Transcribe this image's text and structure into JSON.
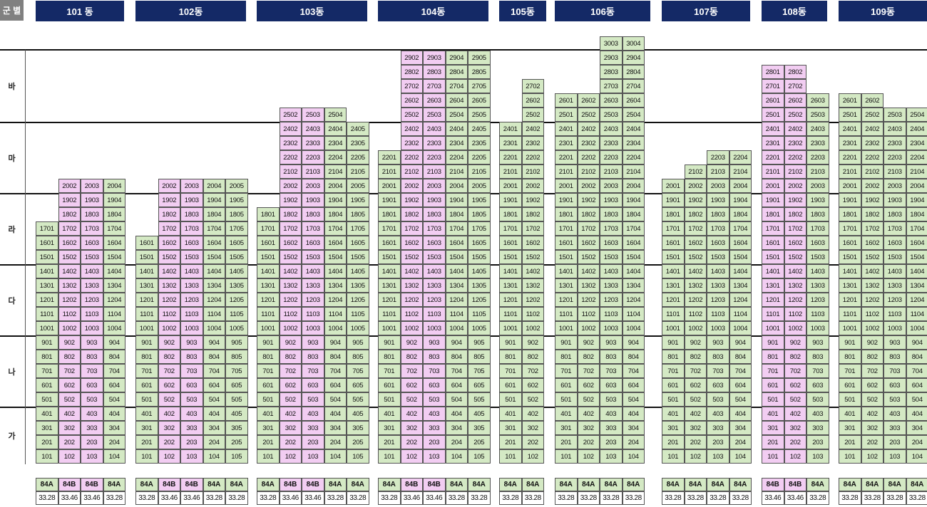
{
  "header": {
    "group_label": "군 별"
  },
  "groups": [
    "바",
    "마",
    "라",
    "다",
    "나",
    "가"
  ],
  "colors": {
    "type_84A": "#d4e9c4",
    "type_84B": "#f2cdf2",
    "header_bg": "#142966"
  },
  "buildings": [
    {
      "name": "101 동",
      "types": [
        "84A",
        "84B",
        "84B",
        "84A"
      ],
      "areas": [
        "33.28",
        "33.46",
        "33.46",
        "33.28"
      ],
      "top": [
        17,
        20,
        20,
        20
      ]
    },
    {
      "name": "102동",
      "types": [
        "84A",
        "84B",
        "84B",
        "84A",
        "84A"
      ],
      "areas": [
        "33.28",
        "33.46",
        "33.46",
        "33.28",
        "33.28"
      ],
      "top": [
        16,
        20,
        20,
        20,
        20
      ]
    },
    {
      "name": "103동",
      "types": [
        "84A",
        "84B",
        "84B",
        "84A",
        "84A"
      ],
      "areas": [
        "33.28",
        "33.46",
        "33.46",
        "33.28",
        "33.28"
      ],
      "top": [
        18,
        25,
        25,
        25,
        24
      ]
    },
    {
      "name": "104동",
      "types": [
        "84A",
        "84B",
        "84B",
        "84A",
        "84A"
      ],
      "areas": [
        "33.28",
        "33.46",
        "33.46",
        "33.28",
        "33.28"
      ],
      "top": [
        22,
        29,
        29,
        29,
        29
      ]
    },
    {
      "name": "105동",
      "types": [
        "84A",
        "84A"
      ],
      "areas": [
        "33.28",
        "33.28"
      ],
      "top": [
        24,
        27
      ]
    },
    {
      "name": "106동",
      "types": [
        "84A",
        "84A",
        "84A",
        "84A"
      ],
      "areas": [
        "33.28",
        "33.28",
        "33.28",
        "33.28"
      ],
      "top": [
        26,
        26,
        30,
        30
      ]
    },
    {
      "name": "107동",
      "types": [
        "84A",
        "84A",
        "84A",
        "84A"
      ],
      "areas": [
        "33.28",
        "33.28",
        "33.28",
        "33.28"
      ],
      "top": [
        20,
        21,
        22,
        22
      ]
    },
    {
      "name": "108동",
      "types": [
        "84B",
        "84B",
        "84A"
      ],
      "areas": [
        "33.46",
        "33.46",
        "33.28"
      ],
      "top": [
        28,
        28,
        26
      ]
    },
    {
      "name": "109동",
      "types": [
        "84A",
        "84A",
        "84A",
        "84A"
      ],
      "areas": [
        "33.28",
        "33.28",
        "33.28",
        "33.28"
      ],
      "top": [
        26,
        26,
        25,
        25
      ]
    }
  ]
}
